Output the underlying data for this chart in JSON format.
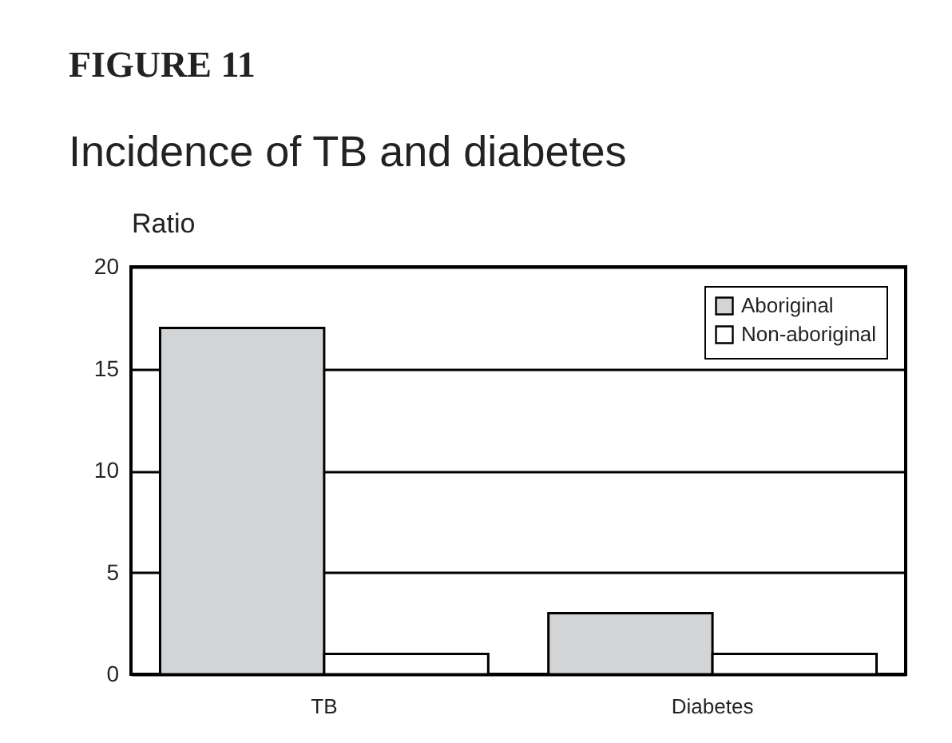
{
  "chart_data": {
    "type": "bar",
    "title": "FIGURE 11",
    "subtitle": "Incidence of TB and diabetes",
    "ylabel": "Ratio",
    "categories": [
      "TB",
      "Diabetes"
    ],
    "series": [
      {
        "name": "Aboriginal",
        "color": "#d3d4d6",
        "values": [
          17,
          3
        ]
      },
      {
        "name": "Non-aboriginal",
        "color": "#ffffff",
        "values": [
          1,
          1
        ]
      }
    ],
    "ylim": [
      0,
      20
    ],
    "yticks": [
      0,
      5,
      10,
      15,
      20
    ],
    "grid": "y",
    "legend": "top right"
  }
}
